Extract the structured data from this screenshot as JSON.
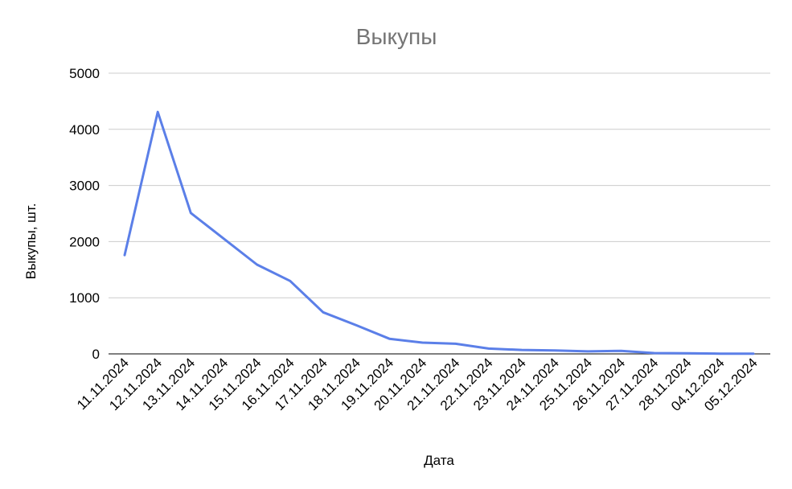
{
  "chart_data": {
    "type": "line",
    "title": "Выкупы",
    "xlabel": "Дата",
    "ylabel": "Выкупы, шт.",
    "categories": [
      "11.11.2024",
      "12.11.2024",
      "13.11.2024",
      "14.11.2024",
      "15.11.2024",
      "16.11.2024",
      "17.11.2024",
      "18.11.2024",
      "19.11.2024",
      "20.11.2024",
      "21.11.2024",
      "22.11.2024",
      "23.11.2024",
      "24.11.2024",
      "25.11.2024",
      "26.11.2024",
      "27.11.2024",
      "28.11.2024",
      "04.12.2024",
      "05.12.2024"
    ],
    "series": [
      {
        "values": [
          1760,
          4310,
          2510,
          2050,
          1590,
          1300,
          740,
          510,
          270,
          200,
          180,
          95,
          70,
          60,
          45,
          55,
          15,
          10,
          5,
          3
        ]
      }
    ],
    "ylim": [
      0,
      5000
    ],
    "yticks": [
      0,
      1000,
      2000,
      3000,
      4000,
      5000
    ],
    "grid": true,
    "line_color": "#5b7fe8"
  }
}
